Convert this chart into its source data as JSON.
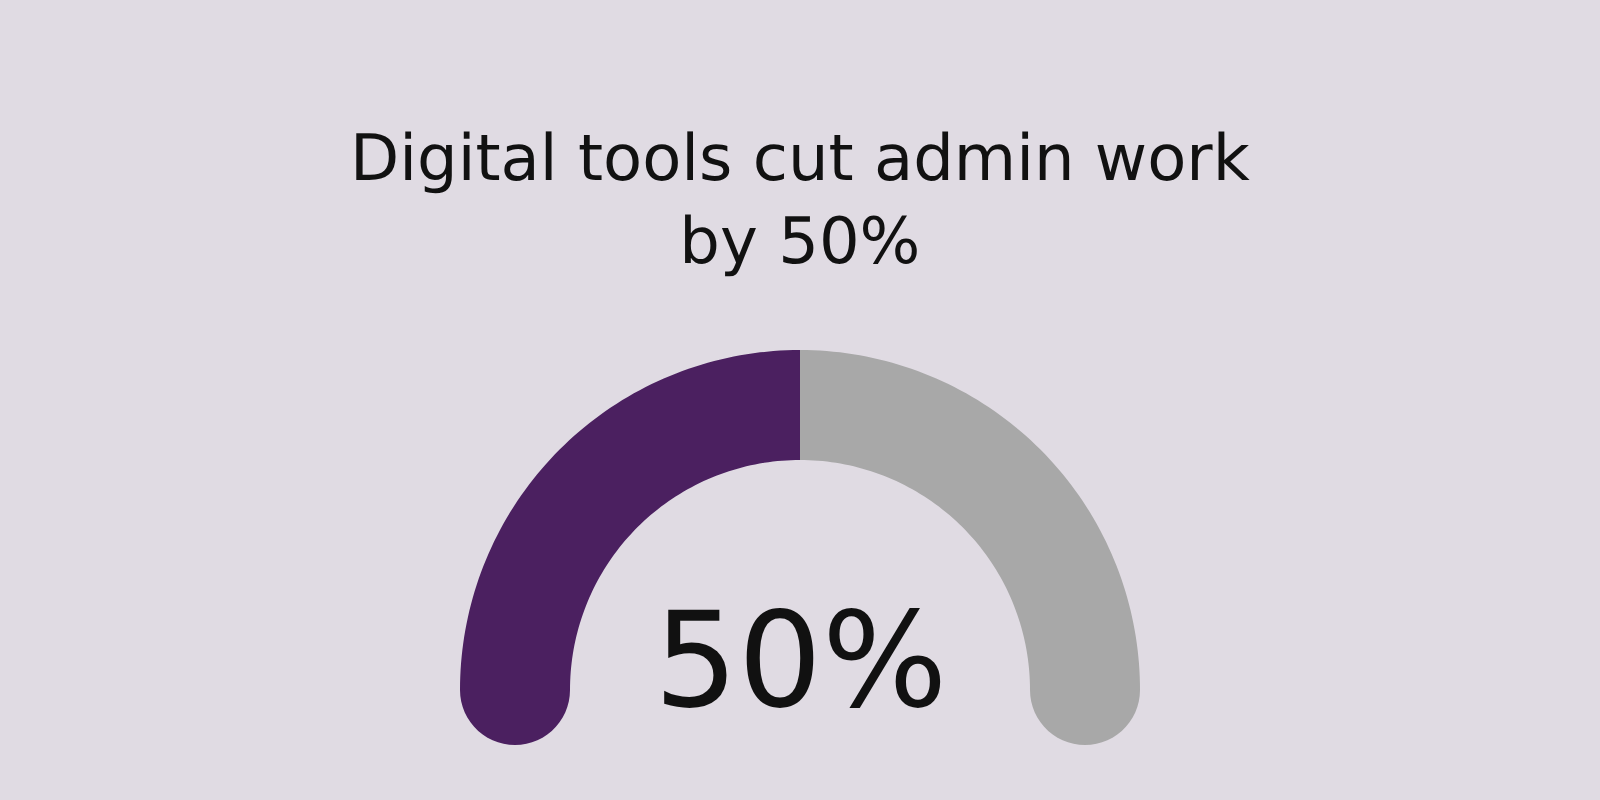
{
  "chart_data": {
    "type": "donut",
    "title": "Digital tools cut admin work by 50%",
    "categories": [
      null,
      null
    ],
    "values": [
      50,
      50
    ],
    "colors": [
      "#4b2060",
      "#a8a8a8"
    ],
    "value_labels": [
      "50%",
      null
    ]
  }
}
